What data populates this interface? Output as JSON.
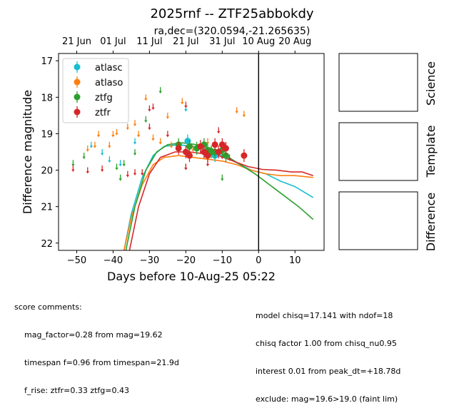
{
  "chart_data": {
    "type": "scatter",
    "title": "2025rnf -- ZTF25abbokdy",
    "subtitle": "ra,dec=(320.0594,-21.265635)",
    "xlabel": "Days before 10-Aug-25 05:22",
    "ylabel": "Difference magnitude",
    "xlim": [
      -55,
      18
    ],
    "ylim": [
      22.2,
      16.8
    ],
    "yaxis_inverted": true,
    "x_ticks": [
      -50,
      -40,
      -30,
      -20,
      -10,
      0,
      10
    ],
    "y_ticks": [
      17,
      18,
      19,
      20,
      21,
      22
    ],
    "top_ticks": [
      {
        "x": -50,
        "label": "21 Jun"
      },
      {
        "x": -40,
        "label": "01 Jul"
      },
      {
        "x": -30,
        "label": "11 Jul"
      },
      {
        "x": -20,
        "label": "21 Jul"
      },
      {
        "x": -10,
        "label": "31 Jul"
      },
      {
        "x": 0,
        "label": "10 Aug"
      },
      {
        "x": 10,
        "label": "20 Aug"
      }
    ],
    "vline_x": 0,
    "legend_position": "upper-left",
    "series": [
      {
        "name": "atlasc",
        "color": "#17becf",
        "detections": [
          [
            -19.5,
            19.2
          ],
          [
            -15,
            19.5
          ],
          [
            -12,
            19.6
          ]
        ],
        "upper_limits": [
          [
            -46,
            19.3
          ],
          [
            -43,
            19.5
          ],
          [
            -41,
            19.7
          ],
          [
            -38,
            19.8
          ],
          [
            -34,
            19.2
          ],
          [
            -20,
            18.3
          ],
          [
            -18,
            19.4
          ],
          [
            -12,
            19.5
          ]
        ],
        "model": [
          [
            -37,
            22.2
          ],
          [
            -35,
            21.2
          ],
          [
            -32,
            20.2
          ],
          [
            -29,
            19.6
          ],
          [
            -26,
            19.35
          ],
          [
            -22,
            19.3
          ],
          [
            -18,
            19.35
          ],
          [
            -14,
            19.45
          ],
          [
            -10,
            19.6
          ],
          [
            -6,
            19.8
          ],
          [
            -2,
            20.0
          ],
          [
            2,
            20.1
          ],
          [
            6,
            20.3
          ],
          [
            10,
            20.45
          ],
          [
            15,
            20.75
          ]
        ]
      },
      {
        "name": "atlaso",
        "color": "#ff7f0e",
        "detections": [],
        "upper_limits": [
          [
            -47,
            19.4
          ],
          [
            -45,
            19.3
          ],
          [
            -44,
            19.0
          ],
          [
            -41,
            19.3
          ],
          [
            -40,
            19.0
          ],
          [
            -39,
            18.95
          ],
          [
            -36,
            18.8
          ],
          [
            -34,
            18.7
          ],
          [
            -33,
            19.0
          ],
          [
            -31,
            18.0
          ],
          [
            -29,
            19.1
          ],
          [
            -27,
            19.2
          ],
          [
            -25,
            18.5
          ],
          [
            -24,
            19.3
          ],
          [
            -21,
            18.1
          ],
          [
            -18,
            19.4
          ],
          [
            -14,
            19.2
          ],
          [
            -12,
            19.3
          ],
          [
            -6,
            18.35
          ],
          [
            -4,
            18.45
          ]
        ],
        "model": [
          [
            -37,
            22.2
          ],
          [
            -35,
            21.3
          ],
          [
            -32,
            20.4
          ],
          [
            -29,
            19.85
          ],
          [
            -26,
            19.65
          ],
          [
            -22,
            19.6
          ],
          [
            -18,
            19.65
          ],
          [
            -14,
            19.7
          ],
          [
            -10,
            19.75
          ],
          [
            -6,
            19.85
          ],
          [
            -2,
            20.0
          ],
          [
            2,
            20.1
          ],
          [
            6,
            20.15
          ],
          [
            10,
            20.15
          ],
          [
            15,
            20.2
          ]
        ]
      },
      {
        "name": "ztfg",
        "color": "#2ca02c",
        "detections": [
          [
            -22,
            19.3
          ],
          [
            -19,
            19.35
          ],
          [
            -17,
            19.4
          ],
          [
            -15,
            19.3
          ],
          [
            -14,
            19.45
          ],
          [
            -13,
            19.5
          ],
          [
            -12,
            19.5
          ],
          [
            -10,
            19.45
          ],
          [
            -9,
            19.6
          ]
        ],
        "upper_limits": [
          [
            -51,
            19.8
          ],
          [
            -48,
            19.6
          ],
          [
            -39,
            19.9
          ],
          [
            -38,
            20.2
          ],
          [
            -37,
            19.8
          ],
          [
            -34,
            19.5
          ],
          [
            -31,
            18.6
          ],
          [
            -27,
            17.8
          ],
          [
            -20,
            19.9
          ],
          [
            -10,
            20.2
          ]
        ],
        "model": [
          [
            -36.5,
            22.2
          ],
          [
            -34,
            21.0
          ],
          [
            -31,
            20.0
          ],
          [
            -28,
            19.5
          ],
          [
            -25,
            19.3
          ],
          [
            -21,
            19.25
          ],
          [
            -17,
            19.3
          ],
          [
            -13,
            19.4
          ],
          [
            -9,
            19.6
          ],
          [
            -5,
            19.85
          ],
          [
            -1,
            20.1
          ],
          [
            3,
            20.4
          ],
          [
            7,
            20.7
          ],
          [
            11,
            21.0
          ],
          [
            15,
            21.35
          ]
        ]
      },
      {
        "name": "ztfr",
        "color": "#d62728",
        "detections": [
          [
            -22,
            19.4
          ],
          [
            -20,
            19.5
          ],
          [
            -19,
            19.6
          ],
          [
            -16,
            19.35
          ],
          [
            -15,
            19.5
          ],
          [
            -14,
            19.6
          ],
          [
            -12,
            19.3
          ],
          [
            -11,
            19.5
          ],
          [
            -10,
            19.3
          ],
          [
            -9,
            19.4
          ],
          [
            -4,
            19.6
          ]
        ],
        "upper_limits": [
          [
            -51,
            19.95
          ],
          [
            -47,
            20.0
          ],
          [
            -43,
            19.95
          ],
          [
            -36,
            20.1
          ],
          [
            -34,
            20.05
          ],
          [
            -32,
            20.05
          ],
          [
            -30,
            18.3
          ],
          [
            -30,
            18.8
          ],
          [
            -29,
            18.25
          ],
          [
            -25,
            19.0
          ],
          [
            -20,
            18.2
          ],
          [
            -20,
            19.9
          ],
          [
            -14,
            19.8
          ],
          [
            -11,
            18.9
          ],
          [
            -10,
            19.6
          ],
          [
            -8,
            19.65
          ]
        ],
        "model": [
          [
            -35.5,
            22.2
          ],
          [
            -33,
            21.0
          ],
          [
            -30,
            20.1
          ],
          [
            -27,
            19.65
          ],
          [
            -23,
            19.5
          ],
          [
            -19,
            19.5
          ],
          [
            -15,
            19.55
          ],
          [
            -11,
            19.6
          ],
          [
            -7,
            19.75
          ],
          [
            -3,
            19.9
          ],
          [
            1,
            19.98
          ],
          [
            5,
            20.0
          ],
          [
            9,
            20.05
          ],
          [
            12,
            20.05
          ],
          [
            15,
            20.15
          ]
        ]
      }
    ]
  },
  "side_panels": [
    "Science",
    "Template",
    "Difference"
  ],
  "comments_left": [
    "score comments:",
    "    mag_factor=0.28 from mag=19.62",
    "    timespan f=0.96 from timespan=21.9d",
    "    f_rise: ztfr=0.33 ztfg=0.43"
  ],
  "comments_right": [
    "model chisq=17.141 with ndof=18",
    "chisq factor 1.00 from chisq_nu0.95",
    "interest 0.01 from peak_dt=+18.78d",
    "exclude: mag=19.6>19.0 (faint lim)"
  ]
}
